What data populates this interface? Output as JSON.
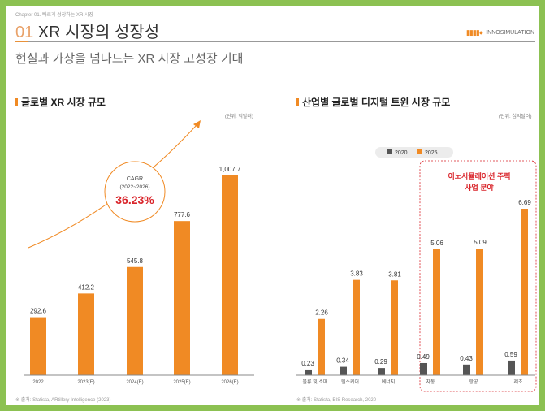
{
  "header": {
    "chapter": "Chapter 01. 빠르게 성장하는 XR 시장",
    "title_num": "01",
    "title_text": " XR 시장의 성장성",
    "logo_text": "INNOSIMULATION",
    "subtitle": "현실과 가상을 넘나드는 XR 시장 고성장 기대"
  },
  "colors": {
    "accent": "#f08a24",
    "gray": "#555555",
    "frame": "#8cc152",
    "highlight": "#d9242a"
  },
  "chart_data": [
    {
      "type": "bar",
      "title": "글로벌 XR 시장 규모",
      "unit": "(단위: 억달러)",
      "categories": [
        "2022",
        "2023(E)",
        "2024(E)",
        "2025(E)",
        "2026(E)"
      ],
      "values": [
        292.6,
        412.2,
        545.8,
        777.6,
        1007.7
      ],
      "labels": [
        "292.6",
        "412.2",
        "545.8",
        "777.6",
        "1,007.7"
      ],
      "ylim": [
        0,
        1100
      ],
      "grid": false,
      "annotation": {
        "label": "CAGR",
        "period": "(2022~2026)",
        "value": "36.23%"
      },
      "source": "※ 출처: Statista, ARtillery Intelligence (2023)"
    },
    {
      "type": "bar",
      "title": "산업별 글로벌 디지털 트윈 시장 규모",
      "unit": "(단위: 십억달러)",
      "categories": [
        "물류 및 소매",
        "헬스케어",
        "에너지",
        "자동",
        "항공",
        "제조"
      ],
      "series": [
        {
          "name": "2020",
          "values": [
            0.23,
            0.34,
            0.29,
            0.49,
            0.43,
            0.59
          ]
        },
        {
          "name": "2025",
          "values": [
            2.26,
            3.83,
            3.81,
            5.06,
            5.09,
            6.69
          ]
        }
      ],
      "ylim": [
        0,
        7.3
      ],
      "grid": false,
      "legend": "top",
      "highlight": {
        "text1": "이노시뮬레이션 주력",
        "text2": "사업 분야",
        "categories": [
          "자동",
          "항공",
          "제조"
        ]
      },
      "source": "※ 출처: Statista, BIS Research, 2020"
    }
  ]
}
